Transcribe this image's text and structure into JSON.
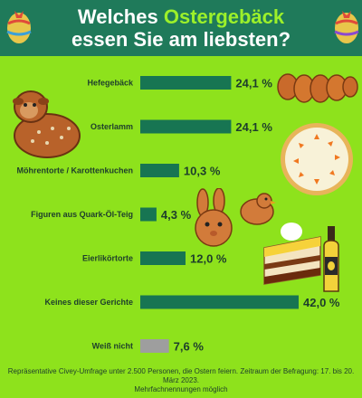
{
  "header": {
    "title_line1_pre": "Welches ",
    "title_line1_highlight": "Ostergebäck",
    "title_line2": "essen Sie am liebsten?"
  },
  "colors": {
    "header_bg": "#1f7a5a",
    "background": "#8ee21c",
    "bar": "#177552",
    "bar_muted": "#9e9e9e",
    "highlight": "#9cf02a"
  },
  "icons": [
    "easter-egg-icon",
    "hefezopf-icon",
    "osterlamm-icon",
    "carrot-cake-icon",
    "bunny-cookie-icon",
    "chick-cookie-icon",
    "eierlikoertorte-icon",
    "eierlikoer-bottle-icon"
  ],
  "chart_data": {
    "type": "bar",
    "orientation": "horizontal",
    "categories": [
      "Hefegebäck",
      "Osterlamm",
      "Möhrentorte / Karottenkuchen",
      "Figuren aus Quark-Öl-Teig",
      "Eierlikörtorte",
      "Keines dieser Gerichte",
      "Weiß nicht"
    ],
    "values": [
      24.1,
      24.1,
      10.3,
      4.3,
      12.0,
      42.0,
      7.6
    ],
    "labels": [
      "24,1 %",
      "24,1 %",
      "10,3 %",
      "4,3 %",
      "12,0 %",
      "42,0 %",
      "7,6 %"
    ],
    "bar_colors": [
      "#177552",
      "#177552",
      "#177552",
      "#177552",
      "#177552",
      "#177552",
      "#9e9e9e"
    ],
    "xlim": [
      0,
      42
    ],
    "grid": false,
    "legend": "none"
  },
  "footnote": {
    "line1": "Repräsentative Civey-Umfrage unter 2.500 Personen, die Ostern feiern. Zeitraum der Befragung: 17. bis 20. März 2023.",
    "line2": "Mehrfachnennungen möglich"
  }
}
